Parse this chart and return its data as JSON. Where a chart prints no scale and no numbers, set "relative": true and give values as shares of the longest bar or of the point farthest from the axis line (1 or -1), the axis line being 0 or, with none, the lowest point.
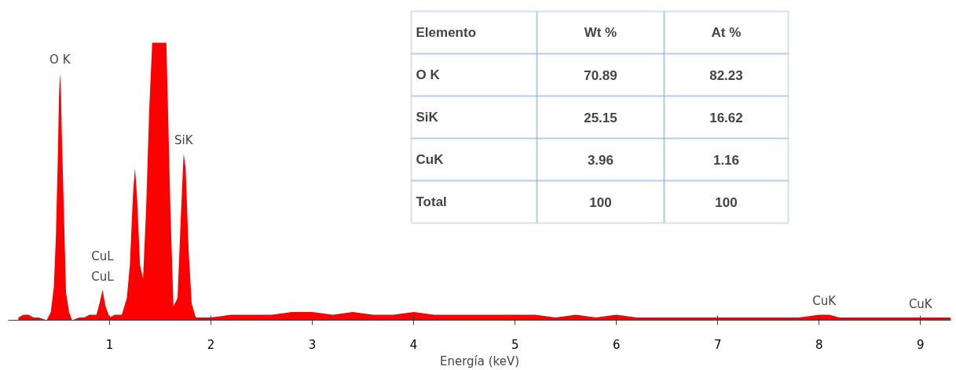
{
  "chart_data": {
    "type": "area",
    "relative": true,
    "xlabel": "Energía (keV)",
    "xlim": [
      0.0,
      9.3
    ],
    "xticks": [
      1,
      2,
      3,
      4,
      5,
      6,
      7,
      8,
      9
    ],
    "grid": false,
    "tick_labels": "x",
    "x": [
      0.1,
      0.15,
      0.2,
      0.25,
      0.3,
      0.38,
      0.42,
      0.45,
      0.47,
      0.49,
      0.5,
      0.51,
      0.52,
      0.53,
      0.55,
      0.57,
      0.6,
      0.63,
      0.7,
      0.75,
      0.8,
      0.87,
      0.9,
      0.93,
      0.96,
      1.0,
      1.05,
      1.12,
      1.17,
      1.2,
      1.23,
      1.25,
      1.27,
      1.3,
      1.33,
      1.36,
      1.39,
      1.42,
      1.56,
      1.6,
      1.63,
      1.67,
      1.7,
      1.73,
      1.75,
      1.78,
      1.81,
      1.85,
      2.0,
      2.2,
      2.4,
      2.6,
      2.8,
      3.0,
      3.2,
      3.4,
      3.6,
      3.8,
      4.0,
      4.2,
      4.4,
      4.6,
      4.8,
      5.0,
      5.2,
      5.4,
      5.6,
      5.8,
      6.0,
      6.2,
      6.4,
      6.6,
      6.8,
      7.0,
      7.2,
      7.4,
      7.6,
      7.8,
      8.0,
      8.05,
      8.1,
      8.2,
      8.4,
      8.6,
      8.8,
      9.0,
      9.2,
      9.3
    ],
    "values": [
      0.01,
      0.02,
      0.02,
      0.01,
      0.01,
      0.0,
      0.03,
      0.12,
      0.3,
      0.6,
      0.8,
      0.89,
      0.82,
      0.65,
      0.38,
      0.1,
      0.03,
      0.0,
      0.01,
      0.01,
      0.02,
      0.02,
      0.06,
      0.11,
      0.05,
      0.01,
      0.02,
      0.02,
      0.08,
      0.2,
      0.45,
      0.55,
      0.45,
      0.2,
      0.15,
      0.4,
      0.75,
      1.0,
      1.0,
      0.4,
      0.05,
      0.08,
      0.35,
      0.6,
      0.55,
      0.25,
      0.06,
      0.01,
      0.01,
      0.02,
      0.02,
      0.02,
      0.03,
      0.03,
      0.02,
      0.03,
      0.02,
      0.02,
      0.03,
      0.02,
      0.02,
      0.02,
      0.02,
      0.02,
      0.02,
      0.01,
      0.02,
      0.01,
      0.02,
      0.01,
      0.01,
      0.01,
      0.01,
      0.01,
      0.01,
      0.01,
      0.01,
      0.01,
      0.02,
      0.02,
      0.02,
      0.01,
      0.01,
      0.01,
      0.01,
      0.01,
      0.01,
      0.01
    ],
    "color": "#ff0000",
    "annotations": [
      {
        "text": "O K",
        "x": 0.51,
        "y": 0.89
      },
      {
        "text": "CuL",
        "x": 0.93,
        "y": 0.11
      },
      {
        "text": "CuL",
        "x": 0.93,
        "y": 0.11
      },
      {
        "text": "SiK",
        "x": 1.73,
        "y": 0.6
      },
      {
        "text": "CuK",
        "x": 8.05,
        "y": 0.02
      },
      {
        "text": "CuK",
        "x": 9.0,
        "y": 0.01
      },
      "Elemento",
      "Wt %",
      "At %",
      "O K",
      "70.89",
      "82.23",
      "SiK",
      "25.15",
      "16.62",
      "CuK",
      "3.96",
      "1.16",
      "Total",
      "100",
      "100"
    ]
  }
}
